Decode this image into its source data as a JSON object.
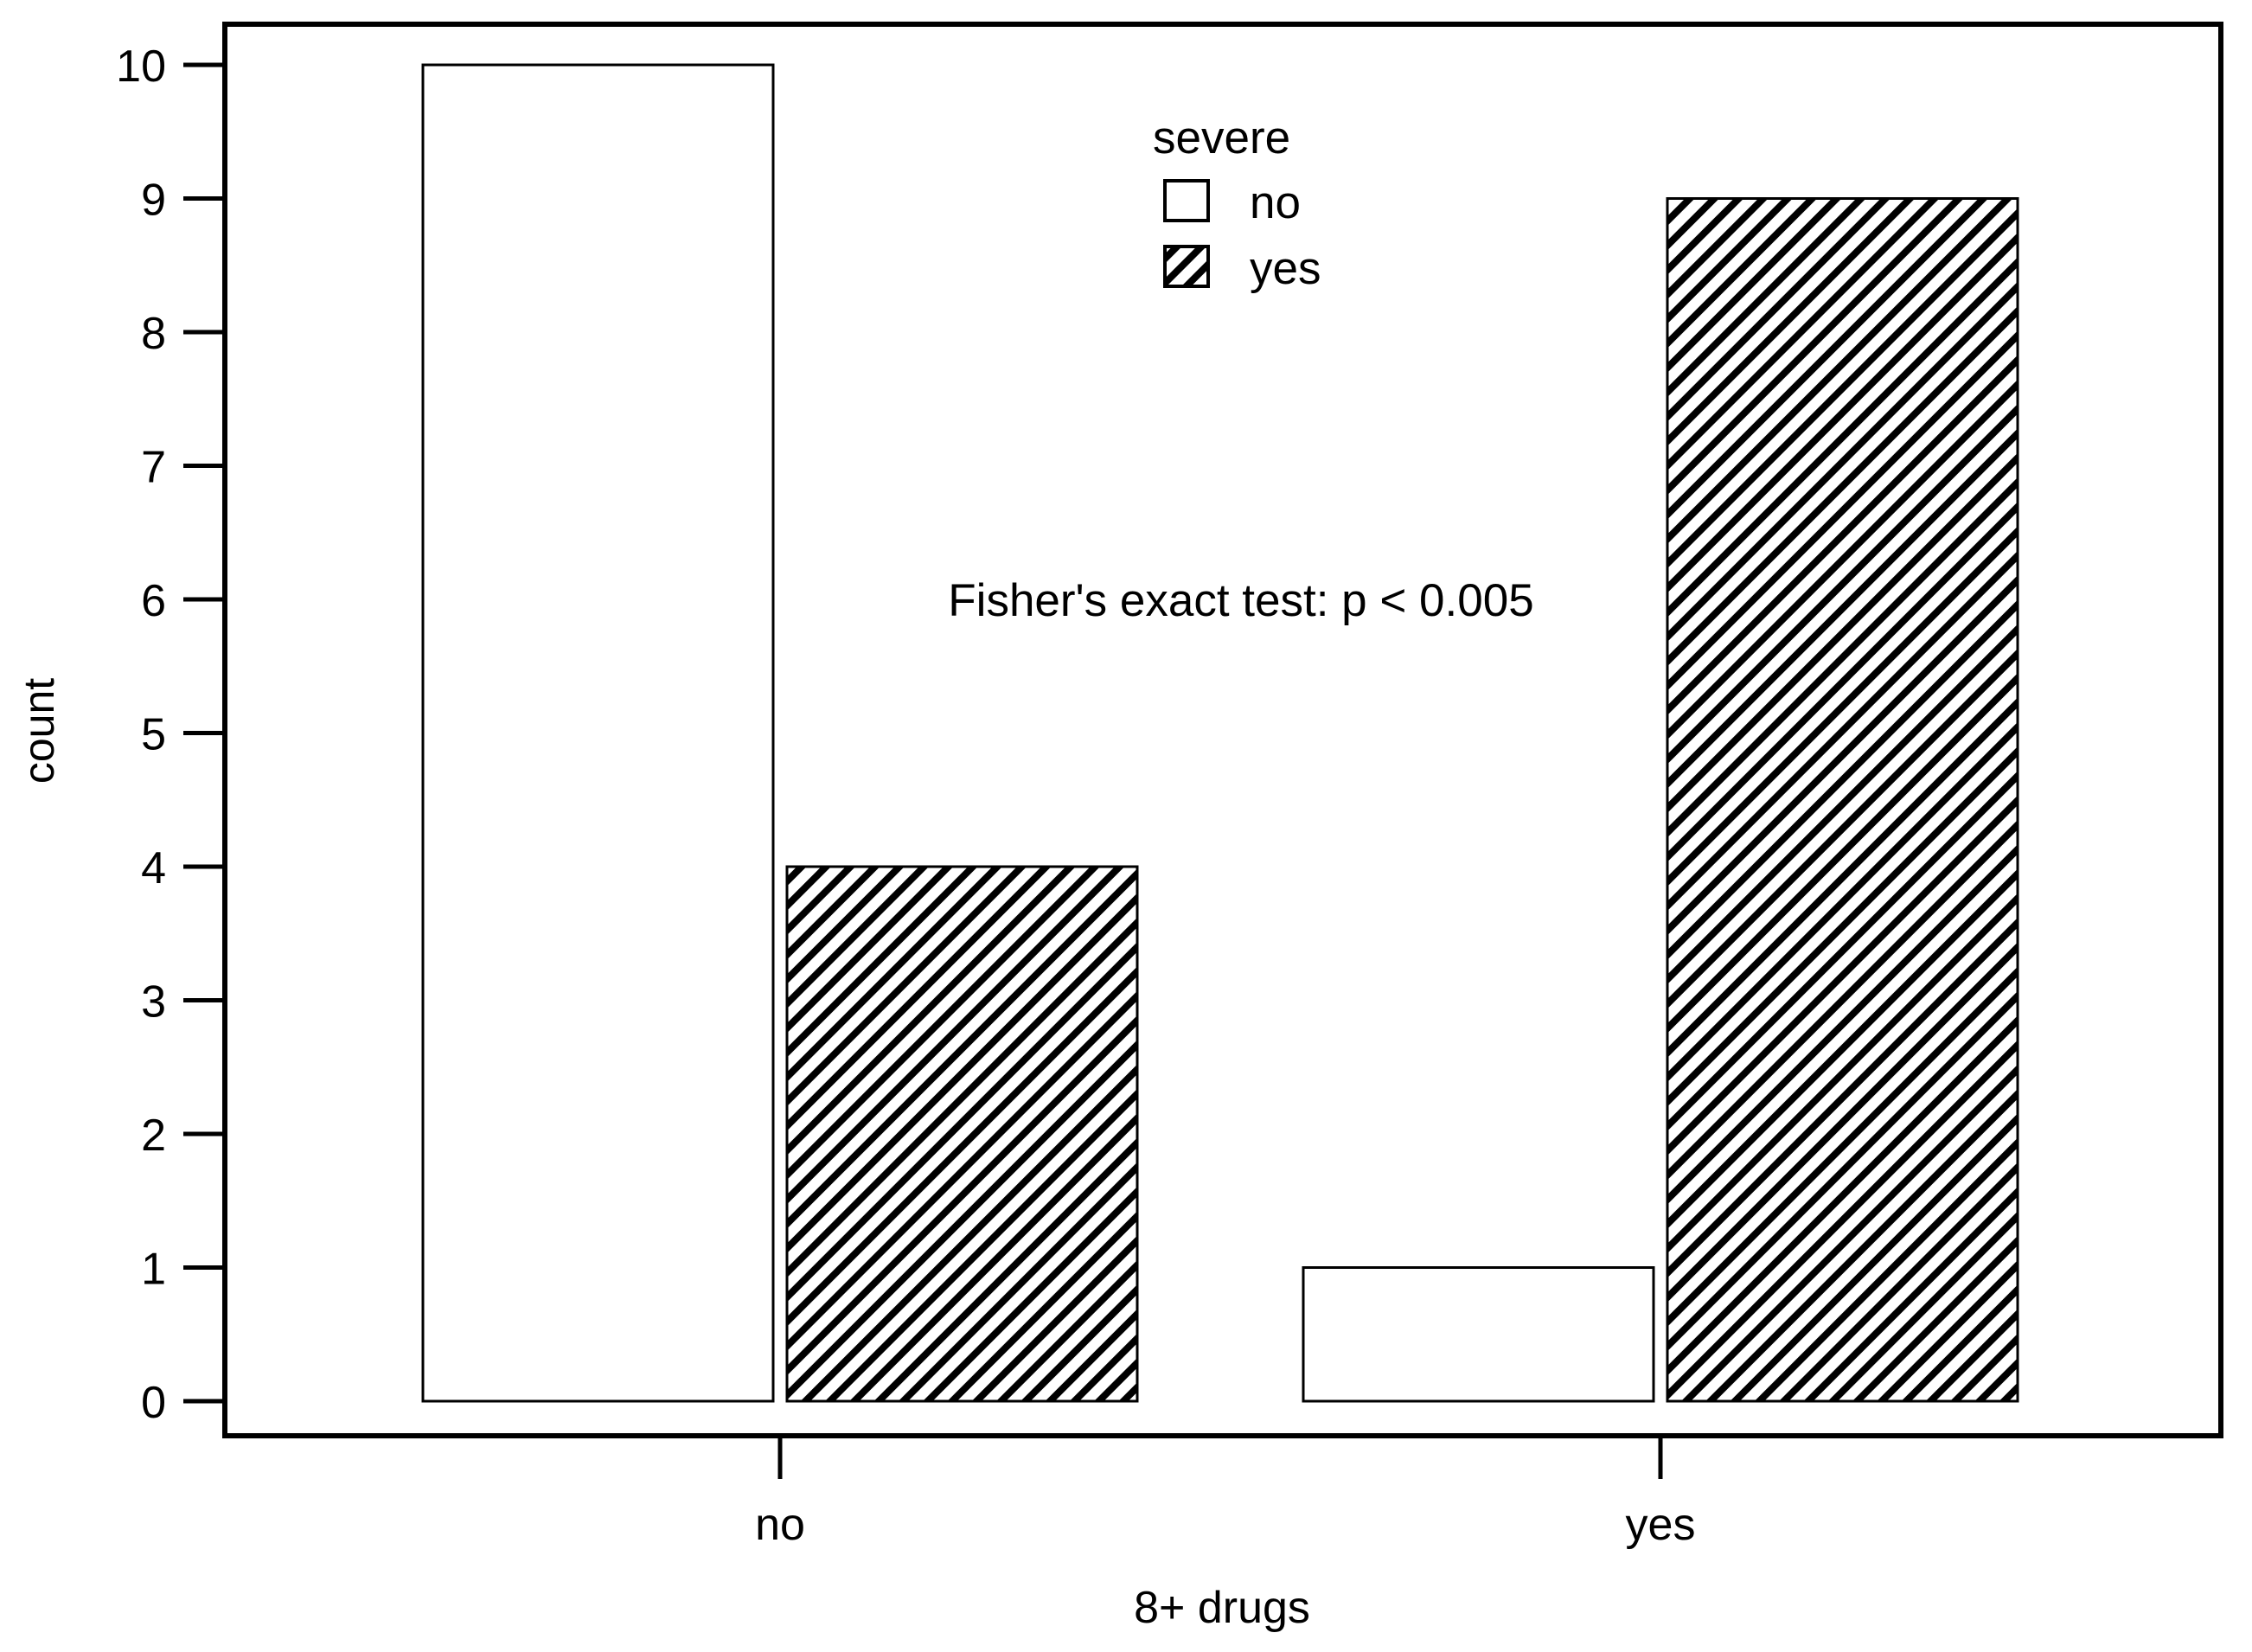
{
  "chart_data": {
    "type": "bar",
    "xlabel": "8+ drugs",
    "ylabel": "count",
    "categories": [
      "no",
      "yes"
    ],
    "ylim": [
      0,
      10
    ],
    "yticks": [
      0,
      1,
      2,
      3,
      4,
      5,
      6,
      7,
      8,
      9,
      10
    ],
    "grid": false,
    "legend": {
      "title": "severe",
      "placement": "top-center"
    },
    "series": [
      {
        "name": "no",
        "values": [
          10,
          1
        ],
        "fill": "#ffffff",
        "pattern": "none"
      },
      {
        "name": "yes",
        "values": [
          4,
          9
        ],
        "fill": "#ffffff",
        "pattern": "diagonal-hatch"
      }
    ],
    "annotation": "Fisher's exact test: p < 0.005"
  }
}
